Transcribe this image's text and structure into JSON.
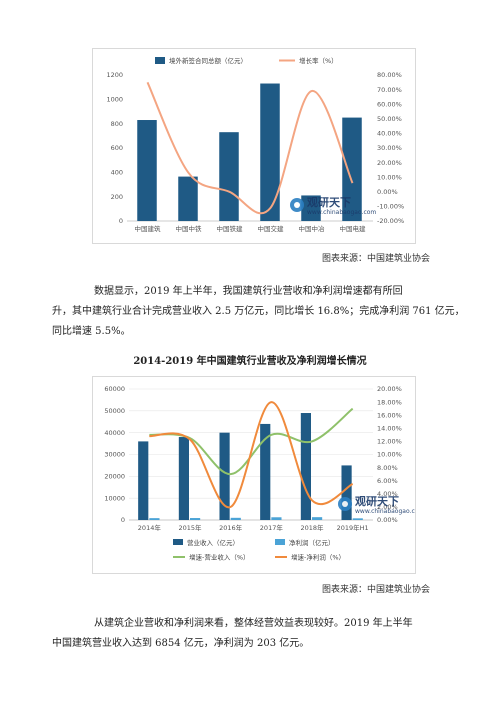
{
  "chart1": {
    "legend": {
      "bar_label": "境外新签合同总额（亿元）",
      "line_label": "增长率（%）"
    },
    "watermark": {
      "text": "观研天下",
      "url": "www.chinabaogao.com"
    },
    "source": "图表来源：中国建筑业协会"
  },
  "paragraph1": {
    "lines": [
      "数据显示，2019 年上半年，我国建筑行业营收和净利润增速都有所回",
      "升，其中建筑行业合计完成营业收入 2.5 万亿元，同比增长 16.8%；完成净利润 761 亿元，",
      "同比增速 5.5%。"
    ]
  },
  "chart2": {
    "title": "2014-2019 年中国建筑行业营收及净利润增长情况",
    "legend": {
      "revenue": "营业收入（亿元）",
      "profit": "净利润（亿元）",
      "revenue_growth": "增速-营业收入（%）",
      "profit_growth": "增速-净利润（%）"
    },
    "watermark": {
      "text": "观研天下",
      "url": "www.chinabaogao.com"
    },
    "source": "图表来源：中国建筑业协会"
  },
  "paragraph2": {
    "lines": [
      "从建筑企业营收和净利润来看，整体经营效益表现较好。2019 年上半年",
      "中国建筑营业收入达到 6854 亿元，净利润为 203 亿元。"
    ]
  },
  "chart_data": [
    {
      "type": "bar",
      "categories": [
        "中国建筑",
        "中国中铁",
        "中国铁建",
        "中国交建",
        "中国中冶",
        "中国电建"
      ],
      "series": [
        {
          "name": "境外新签合同总额（亿元）",
          "type": "bar",
          "axis": "left",
          "values": [
            830,
            365,
            730,
            1130,
            210,
            850
          ],
          "color": "#1f5a85"
        },
        {
          "name": "增长率（%）",
          "type": "line",
          "axis": "right",
          "smooth": true,
          "values": [
            75,
            13,
            0,
            -11,
            69,
            6
          ],
          "color": "#f4a582"
        }
      ],
      "ylim_left": [
        0,
        1200
      ],
      "yticks_left": [
        0,
        200,
        400,
        600,
        800,
        1000,
        1200
      ],
      "ylim_right": [
        -20,
        80
      ],
      "yticks_right": [
        "-20.00%",
        "-10.00%",
        "0.00%",
        "10.00%",
        "20.00%",
        "30.00%",
        "40.00%",
        "50.00%",
        "60.00%",
        "70.00%",
        "80.00%"
      ],
      "grid": false,
      "legend_position": "top"
    },
    {
      "type": "bar",
      "categories": [
        "2014年",
        "2015年",
        "2016年",
        "2017年",
        "2018年",
        "2019年H1"
      ],
      "series": [
        {
          "name": "营业收入（亿元）",
          "type": "bar",
          "axis": "left",
          "values": [
            36000,
            38000,
            40000,
            44000,
            49000,
            25000
          ],
          "color": "#1f5a85"
        },
        {
          "name": "净利润（亿元）",
          "type": "bar",
          "axis": "left",
          "values": [
            850,
            900,
            1000,
            1250,
            1300,
            760
          ],
          "color": "#4ba3d6"
        },
        {
          "name": "增速-营业收入（%）",
          "type": "line",
          "axis": "right",
          "smooth": true,
          "values": [
            13.0,
            12.5,
            7.0,
            13.0,
            12.0,
            17.0
          ],
          "color": "#8fc16a"
        },
        {
          "name": "增速-净利润（%）",
          "type": "line",
          "axis": "right",
          "smooth": true,
          "values": [
            12.8,
            12.3,
            2.0,
            18.0,
            3.0,
            5.5
          ],
          "color": "#f08a3c"
        }
      ],
      "ylim_left": [
        0,
        60000
      ],
      "yticks_left": [
        0,
        10000,
        20000,
        30000,
        40000,
        50000,
        60000
      ],
      "ylim_right": [
        0,
        20
      ],
      "yticks_right": [
        "0.00%",
        "2.00%",
        "4.00%",
        "6.00%",
        "8.00%",
        "10.00%",
        "12.00%",
        "14.00%",
        "16.00%",
        "18.00%",
        "20.00%"
      ],
      "grid": true,
      "legend_position": "bottom"
    }
  ]
}
